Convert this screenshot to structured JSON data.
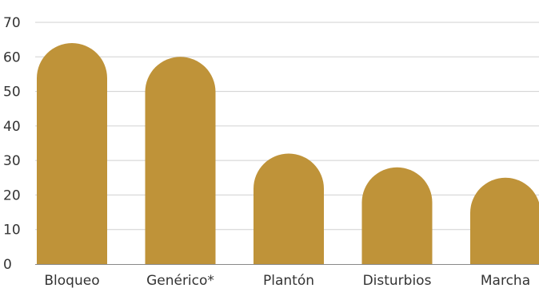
{
  "chart_data": {
    "type": "bar",
    "categories": [
      "Bloqueo",
      "Genérico*",
      "Plantón",
      "Disturbios",
      "Marcha"
    ],
    "values": [
      64,
      60,
      32,
      28,
      25
    ],
    "ylim": [
      0,
      70
    ],
    "yticks": [
      0,
      10,
      20,
      30,
      40,
      50,
      60,
      70
    ],
    "grid": true,
    "bar_color": "#BF9339",
    "legend": "none"
  }
}
